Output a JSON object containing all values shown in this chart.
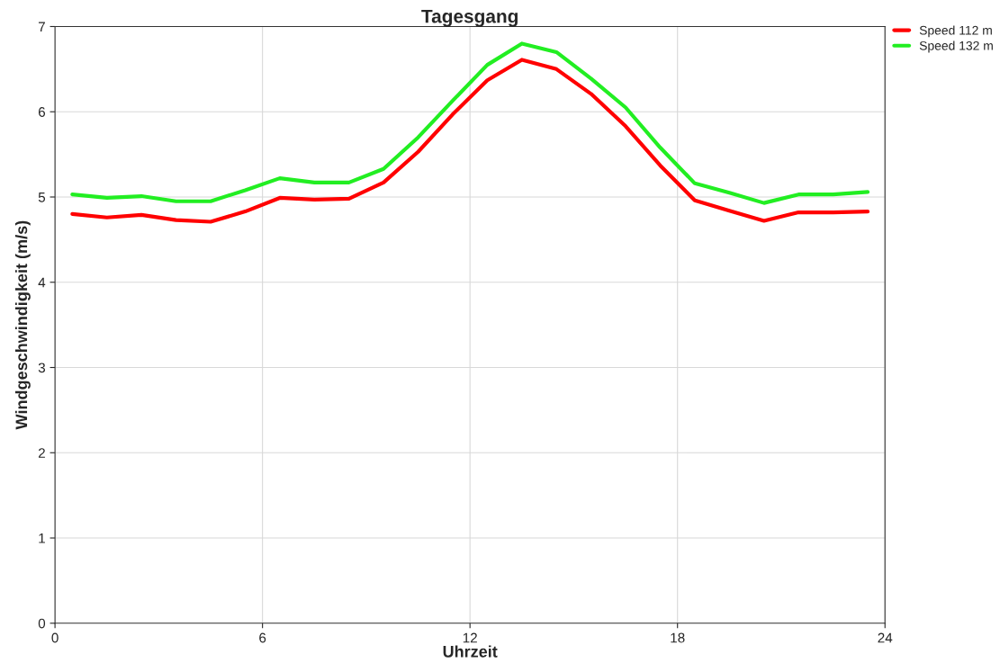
{
  "chart_data": {
    "type": "line",
    "title": "Tagesgang",
    "xlabel": "Uhrzeit",
    "ylabel": "Windgeschwindigkeit (m/s)",
    "x": [
      0.5,
      1.5,
      2.5,
      3.5,
      4.5,
      5.5,
      6.5,
      7.5,
      8.5,
      9.5,
      10.5,
      11.5,
      12.5,
      13.5,
      14.5,
      15.5,
      16.5,
      17.5,
      18.5,
      19.5,
      20.5,
      21.5,
      22.5,
      23.5
    ],
    "series": [
      {
        "name": "Speed 112 m",
        "color": "#ff0000",
        "values": [
          4.8,
          4.76,
          4.79,
          4.73,
          4.71,
          4.83,
          4.99,
          4.97,
          4.98,
          5.17,
          5.53,
          5.97,
          6.37,
          6.61,
          6.5,
          6.21,
          5.83,
          5.37,
          4.96,
          4.84,
          4.72,
          4.82,
          4.82,
          4.83
        ]
      },
      {
        "name": "Speed 132 m",
        "color": "#22ee22",
        "values": [
          5.03,
          4.99,
          5.01,
          4.95,
          4.95,
          5.08,
          5.22,
          5.17,
          5.17,
          5.33,
          5.7,
          6.13,
          6.55,
          6.8,
          6.7,
          6.39,
          6.05,
          5.58,
          5.16,
          5.05,
          4.93,
          5.03,
          5.03,
          5.06
        ]
      }
    ],
    "xlim": [
      0,
      24
    ],
    "xticks": [
      0,
      6,
      12,
      18,
      24
    ],
    "ylim": [
      0,
      7
    ],
    "yticks": [
      0,
      1,
      2,
      3,
      4,
      5,
      6,
      7
    ],
    "grid": true,
    "legend": "top right",
    "marker": "none",
    "line_style": "solid"
  }
}
